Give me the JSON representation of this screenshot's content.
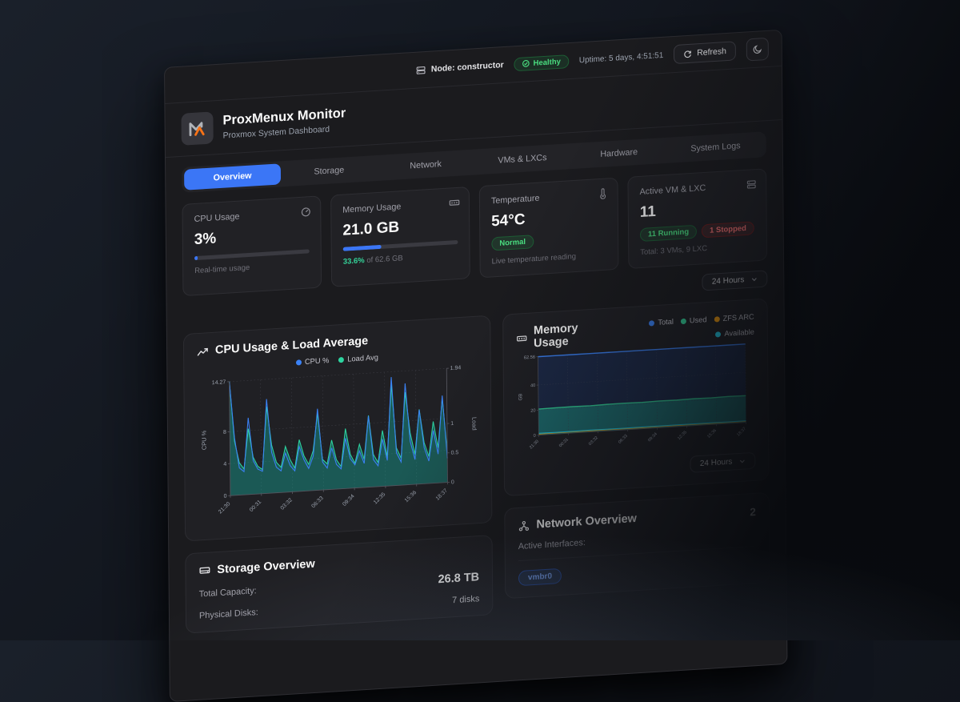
{
  "topbar": {
    "node_label": "Node: constructor",
    "health_badge": "Healthy",
    "uptime": "Uptime: 5 days, 4:51:51",
    "refresh_label": "Refresh"
  },
  "header": {
    "title": "ProxMenux Monitor",
    "subtitle": "Proxmox System Dashboard"
  },
  "tabs": [
    {
      "label": "Overview",
      "active": true
    },
    {
      "label": "Storage",
      "active": false
    },
    {
      "label": "Network",
      "active": false
    },
    {
      "label": "VMs & LXCs",
      "active": false
    },
    {
      "label": "Hardware",
      "active": false
    },
    {
      "label": "System Logs",
      "active": false
    }
  ],
  "stats": {
    "cpu": {
      "title": "CPU Usage",
      "value": "3%",
      "percent": 3,
      "caption": "Real-time usage"
    },
    "memory": {
      "title": "Memory Usage",
      "value": "21.0 GB",
      "percent": 33.6,
      "caption_pct": "33.6%",
      "caption_rest": " of 62.6 GB"
    },
    "temperature": {
      "title": "Temperature",
      "value": "54°C",
      "badge": "Normal",
      "caption": "Live temperature reading"
    },
    "vms": {
      "title": "Active VM & LXC",
      "value": "11",
      "running": "11 Running",
      "stopped": "1 Stopped",
      "caption": "Total: 3 VMs, 9 LXC"
    }
  },
  "time_range": {
    "selected": "24 Hours"
  },
  "storage": {
    "title": "Storage Overview",
    "rows": [
      {
        "label": "Total Capacity:",
        "value": "26.8 TB"
      },
      {
        "label": "Physical Disks:",
        "value": "7 disks"
      }
    ]
  },
  "network": {
    "title": "Network Overview",
    "count": "2",
    "active_interfaces_label": "Active Interfaces:",
    "interface_badge": "vmbr0"
  },
  "colors": {
    "accent_blue": "#3b76f6",
    "green": "#4ade80",
    "red": "#f87171",
    "logo_orange": "#f97316",
    "teal_fill": "#14b8a6",
    "cyan": "#22d3ee",
    "amber": "#f59e0b"
  },
  "chart_data": [
    {
      "type": "area",
      "title": "CPU Usage & Load Average",
      "x_ticks": [
        "21:30",
        "00:31",
        "03:32",
        "06:33",
        "09:34",
        "12:35",
        "15:36",
        "18:37"
      ],
      "y_left": {
        "label": "CPU %",
        "ticks": [
          0,
          4,
          8,
          14.27
        ],
        "max": 14.27
      },
      "y_right": {
        "label": "Load",
        "ticks": [
          0,
          0.5,
          1,
          1.94
        ],
        "max": 1.94
      },
      "legend": [
        {
          "name": "CPU %",
          "color": "#3b82f6"
        },
        {
          "name": "Load Avg",
          "color": "#2dd4a0"
        }
      ],
      "series": [
        {
          "name": "CPU %",
          "axis": "left",
          "color": "#3b82f6",
          "values": [
            14.27,
            7.2,
            3.4,
            2.9,
            9.6,
            4.2,
            3.1,
            2.8,
            11.8,
            5.1,
            3.2,
            2.7,
            4.9,
            3.3,
            2.6,
            5.6,
            3.9,
            2.8,
            4.3,
            10.2,
            3.5,
            2.7,
            5.2,
            3.1,
            2.5,
            6.3,
            3.7,
            2.9,
            4.6,
            3.0,
            8.9,
            3.4,
            2.6,
            5.9,
            3.2,
            13.6,
            4.1,
            2.9,
            12.7,
            5.4,
            3.1,
            9.3,
            4.5,
            2.8,
            6.6,
            3.6,
            10.9,
            3.0
          ]
        },
        {
          "name": "Load Avg",
          "axis": "right",
          "color": "#2dd4a0",
          "fill": "rgba(20,184,166,0.38)",
          "values": [
            1.94,
            0.92,
            0.55,
            0.44,
            1.12,
            0.63,
            0.47,
            0.41,
            1.48,
            0.82,
            0.52,
            0.43,
            0.78,
            0.55,
            0.4,
            0.88,
            0.6,
            0.45,
            0.68,
            1.31,
            0.52,
            0.44,
            0.84,
            0.5,
            0.38,
            1.02,
            0.58,
            0.42,
            0.74,
            0.48,
            1.22,
            0.55,
            0.41,
            0.95,
            0.5,
            1.72,
            0.64,
            0.46,
            1.58,
            0.88,
            0.51,
            1.27,
            0.7,
            0.46,
            1.05,
            0.6,
            1.44,
            0.52
          ]
        }
      ]
    },
    {
      "type": "area",
      "title": "Memory Usage",
      "x_ticks": [
        "21:30",
        "00:31",
        "03:32",
        "06:33",
        "09:34",
        "12:35",
        "15:36",
        "18:37"
      ],
      "y": {
        "label": "GB",
        "ticks": [
          0,
          20,
          40,
          62.56
        ],
        "max": 62.56
      },
      "legend": [
        {
          "name": "Total",
          "color": "#3b82f6"
        },
        {
          "name": "Used",
          "color": "#34d399"
        },
        {
          "name": "ZFS ARC",
          "color": "#f59e0b"
        },
        {
          "name": "Available",
          "color": "#22d3ee"
        }
      ],
      "series": [
        {
          "name": "Total",
          "color": "#3b82f6",
          "fill": "#1d2a48",
          "width": 2,
          "values": [
            62.56,
            62.56,
            62.56,
            62.56,
            62.56,
            62.56,
            62.56,
            62.56,
            62.56,
            62.56,
            62.56,
            62.56,
            62.56
          ]
        },
        {
          "name": "Used",
          "color": "#34d399",
          "fill": "rgba(32,178,152,0.50)",
          "width": 2,
          "values": [
            20.8,
            21.0,
            21.1,
            20.9,
            21.2,
            21.3,
            21.1,
            21.4,
            21.2,
            21.5,
            21.3,
            21.6,
            21.4
          ]
        },
        {
          "name": "ZFS ARC",
          "color": "#f59e0b",
          "width": 1.2,
          "values": [
            0.8,
            0.85,
            0.9,
            0.88,
            0.92,
            0.9,
            0.87,
            0.91,
            0.9,
            0.93,
            0.89,
            0.92,
            0.9
          ]
        },
        {
          "name": "Available",
          "color": "#22d3ee",
          "width": 1.6,
          "values": [
            1.5,
            1.4,
            1.45,
            1.5,
            1.42,
            1.38,
            1.44,
            1.4,
            1.46,
            1.39,
            1.43,
            1.37,
            1.41
          ]
        }
      ]
    }
  ]
}
